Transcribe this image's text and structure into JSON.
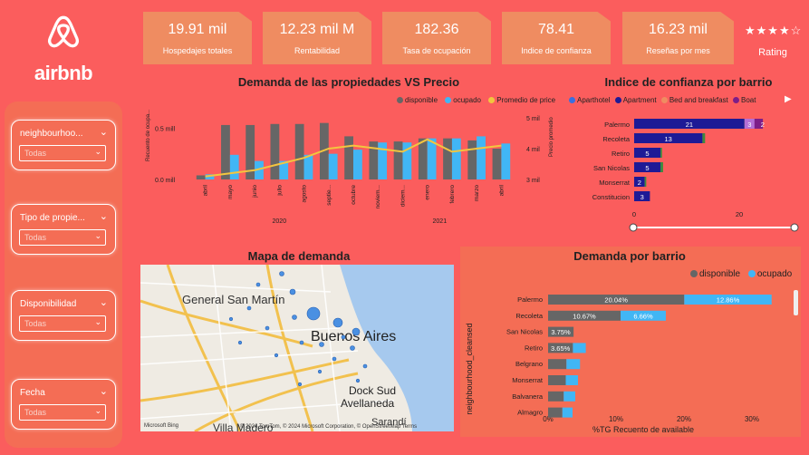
{
  "brand": {
    "name": "airbnb"
  },
  "kpis": [
    {
      "value": "19.91 mil",
      "label": "Hospedajes totales"
    },
    {
      "value": "12.23 mil M",
      "label": "Rentabilidad"
    },
    {
      "value": "182.36",
      "label": "Tasa de ocupación"
    },
    {
      "value": "78.41",
      "label": "Indice de confianza"
    },
    {
      "value": "16.23 mil",
      "label": "Reseñas por mes"
    }
  ],
  "rating": {
    "stars": "★★★★☆",
    "label": "Rating"
  },
  "filters": [
    {
      "label": "neighbourhoo...",
      "value": "Todas"
    },
    {
      "label": "Tipo de propie...",
      "value": "Todas"
    },
    {
      "label": "Disponibilidad",
      "value": "Todas"
    },
    {
      "label": "Fecha",
      "value": "Todas"
    }
  ],
  "colors": {
    "background": "#fb5d5d",
    "panel": "#f46d55",
    "kpi": "#ef8c61",
    "disponible": "#666666",
    "ocupado": "#41b6f5",
    "precio": "#f3c53f",
    "aparthotel": "#3a6fe0",
    "apartment": "#1e1a96",
    "bnb": "#ef8c61",
    "boat": "#7d1e88"
  },
  "chart_data": [
    {
      "type": "bar",
      "title": "Demanda de las propiedades VS Precio",
      "categories": [
        "abril",
        "mayo",
        "junio",
        "julio",
        "agosto",
        "septie...",
        "octubre",
        "noviem...",
        "diciem...",
        "enero",
        "febrero",
        "marzo",
        "abril"
      ],
      "years": [
        "2020",
        "2021"
      ],
      "ylabel": "Recuento de ocupa...",
      "y2label": "Precio promedio",
      "yticks": [
        "0.5 mill",
        "0.0 mill"
      ],
      "y2ticks": [
        "5 mil",
        "4 mil",
        "3 mil"
      ],
      "series": [
        {
          "name": "disponible",
          "values": [
            0.04,
            0.53,
            0.53,
            0.54,
            0.54,
            0.55,
            0.42,
            0.37,
            0.37,
            0.4,
            0.4,
            0.38,
            0.3
          ]
        },
        {
          "name": "ocupado",
          "values": [
            0.05,
            0.24,
            0.18,
            0.18,
            0.24,
            0.25,
            0.29,
            0.36,
            0.36,
            0.4,
            0.4,
            0.42,
            0.35
          ]
        },
        {
          "name": "Promedio de price",
          "values": [
            3.1,
            3.2,
            3.3,
            3.5,
            3.7,
            4.0,
            4.1,
            4.0,
            3.9,
            4.3,
            3.9,
            4.0,
            4.1
          ]
        }
      ],
      "ylim": [
        0,
        0.6
      ],
      "y2lim": [
        3,
        5
      ]
    },
    {
      "type": "bar",
      "title": "Indice de confianza por barrio",
      "categories": [
        "Palermo",
        "Recoleta",
        "Retiro",
        "San Nicolas",
        "Monserrat",
        "Constitucion"
      ],
      "series": [
        {
          "name": "Aparthotel",
          "values": [
            0,
            0,
            0,
            0,
            0,
            0
          ]
        },
        {
          "name": "Apartment",
          "values": [
            21,
            13,
            5,
            5,
            2,
            3
          ]
        },
        {
          "name": "Bed and breakfast",
          "values": [
            0.5,
            0.5,
            0.3,
            0.5,
            0.3,
            0
          ]
        },
        {
          "name": "Boat",
          "values": [
            3,
            0,
            0,
            0,
            0,
            0
          ]
        }
      ],
      "extra_labels": [
        "3",
        "2"
      ],
      "xticks": [
        "0",
        "20"
      ]
    },
    {
      "type": "bar",
      "title": "Demanda por barrio",
      "ylabel": "neighbourhood_cleansed",
      "xlabel": "%TG Recuento de available",
      "categories": [
        "Palermo",
        "Recoleta",
        "San Nicolas",
        "Retiro",
        "Belgrano",
        "Monserrat",
        "Balvanera",
        "Almagro"
      ],
      "series": [
        {
          "name": "disponible",
          "values": [
            20.04,
            10.67,
            3.75,
            3.65,
            2.7,
            2.6,
            2.3,
            2.1
          ]
        },
        {
          "name": "ocupado",
          "values": [
            12.86,
            6.66,
            0,
            1.9,
            2.0,
            1.8,
            1.7,
            1.5
          ]
        }
      ],
      "labels_disp": [
        "20.04%",
        "10.67%",
        "3.75%",
        "3.65%",
        "",
        "",
        "",
        ""
      ],
      "labels_ocup": [
        "12.86%",
        "6.66%",
        "",
        "",
        "",
        "",
        "",
        ""
      ],
      "xticks": [
        "0%",
        "10%",
        "20%",
        "30%"
      ]
    }
  ],
  "map": {
    "title": "Mapa de demanda",
    "places": [
      "General San Martín",
      "Buenos Aires",
      "Dock Sud",
      "Avellaneda",
      "Villa Madero",
      "Sarandí"
    ],
    "attribution": "© 2024 TomTom, © 2024 Microsoft Corporation, © OpenStreetMap  Terms",
    "provider": "Microsoft Bing"
  }
}
